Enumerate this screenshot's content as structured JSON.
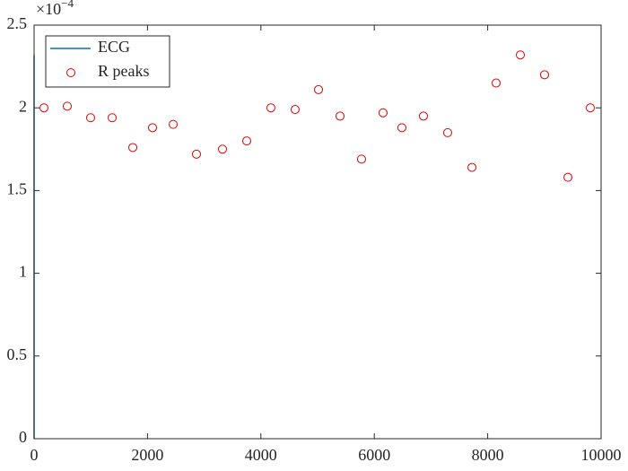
{
  "chart_data": {
    "type": "scatter",
    "y_multiplier": {
      "base": "×10",
      "exponent": "−4"
    },
    "xlim": [
      0,
      10000
    ],
    "xticks": [
      0,
      2000,
      4000,
      6000,
      8000,
      10000
    ],
    "ylim": [
      0,
      2.5
    ],
    "yticks": [
      0,
      0.5,
      1,
      1.5,
      2,
      2.5
    ],
    "legend_position": "upper-left",
    "series": [
      {
        "name": "ECG",
        "color": "#0072bd",
        "style": "line",
        "x": [
          0,
          0
        ],
        "values": [
          0,
          2.32
        ]
      },
      {
        "name": "R peaks",
        "color": "#e00000",
        "style": "circle",
        "x": [
          174,
          585,
          997,
          1377,
          1741,
          2089,
          2453,
          2864,
          3323,
          3750,
          4177,
          4604,
          5016,
          5396,
          5775,
          6155,
          6487,
          6867,
          7294,
          7722,
          8149,
          8576,
          9003,
          9415,
          9810
        ],
        "values": [
          2.0,
          2.01,
          1.94,
          1.94,
          1.76,
          1.88,
          1.9,
          1.72,
          1.75,
          1.8,
          2.0,
          1.99,
          2.11,
          1.95,
          1.69,
          1.97,
          1.88,
          1.95,
          1.85,
          1.64,
          2.15,
          2.32,
          2.2,
          1.58,
          2.0
        ]
      }
    ]
  }
}
